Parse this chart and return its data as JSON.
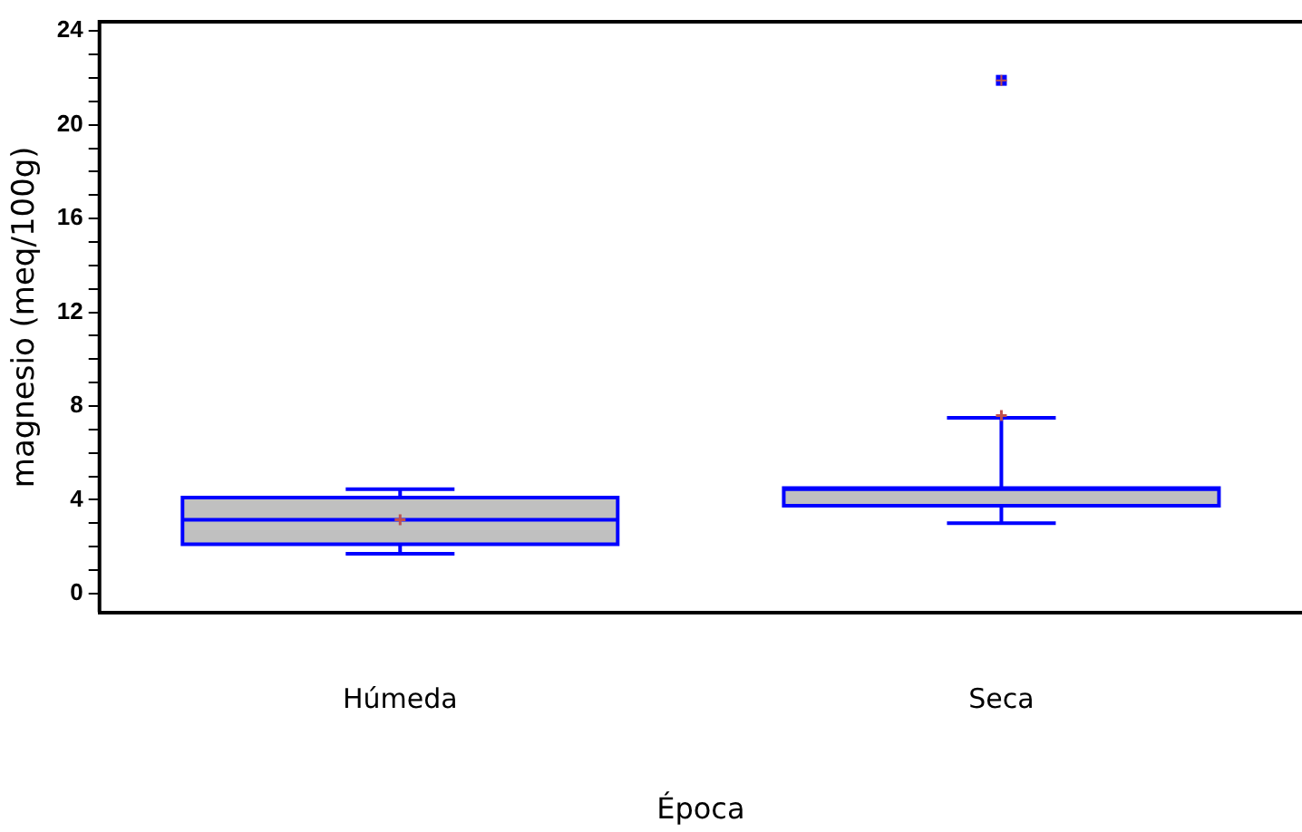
{
  "chart_data": {
    "type": "box",
    "xlabel": "Época",
    "ylabel": "magnesio (meq/100g)",
    "categories": [
      "Húmeda",
      "Seca"
    ],
    "boxes": [
      {
        "low": 1.7,
        "q1": 2.1,
        "median": 3.15,
        "q3": 4.1,
        "high": 4.45,
        "mean": 3.15
      },
      {
        "low": 3.0,
        "q1": 3.75,
        "median": 4.45,
        "q3": 4.5,
        "high": 7.5,
        "mean": 7.6,
        "outliers": [
          21.9
        ]
      }
    ],
    "color": "#c0c0c0",
    "ylim": [
      -0.8,
      24.4
    ],
    "yticks": [
      0,
      {
        "value": 1,
        "label": null
      },
      {
        "value": 2,
        "label": null
      },
      {
        "value": 3,
        "label": null
      },
      4,
      {
        "value": 5,
        "label": null
      },
      {
        "value": 6,
        "label": null
      },
      {
        "value": 7,
        "label": null
      },
      8,
      {
        "value": 9,
        "label": null
      },
      {
        "value": 10,
        "label": null
      },
      {
        "value": 11,
        "label": null
      },
      12,
      {
        "value": 13,
        "label": null
      },
      {
        "value": 14,
        "label": null
      },
      {
        "value": 15,
        "label": null
      },
      16,
      {
        "value": 17,
        "label": null
      },
      {
        "value": 18,
        "label": null
      },
      {
        "value": 19,
        "label": null
      },
      20,
      {
        "value": 21,
        "label": null
      },
      {
        "value": 22,
        "label": null
      },
      {
        "value": 23,
        "label": null
      },
      24
    ],
    "grid": false
  }
}
